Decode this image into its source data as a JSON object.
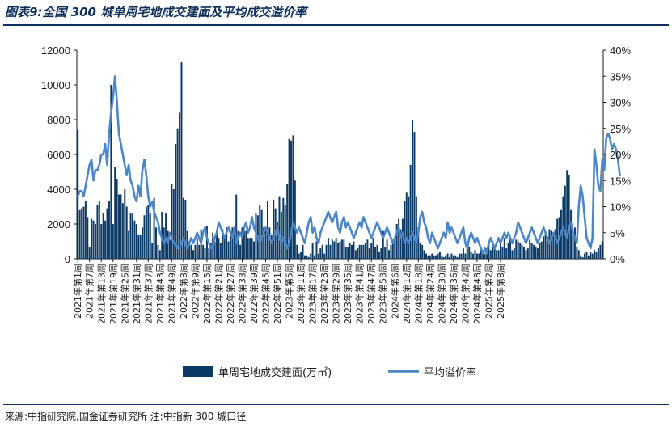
{
  "header": {
    "title": "图表9:全国 300 城单周宅地成交建面及平均成交溢价率"
  },
  "footer": {
    "source": "来源:中指研究院,国金证券研究所 注:中指新 300 城口径"
  },
  "colors": {
    "bar": "#0c3a66",
    "line": "#4a86c8",
    "title": "#0c2e5a"
  },
  "chart_data": {
    "type": "bar",
    "title": "",
    "xlabel": "",
    "ylabel": "",
    "ylim": [
      0,
      12000
    ],
    "y2lim": [
      0,
      40
    ],
    "y_ticks": [
      "0",
      "2000",
      "4000",
      "6000",
      "8000",
      "10000",
      "12000"
    ],
    "y2_ticks": [
      "0%",
      "5%",
      "10%",
      "15%",
      "20%",
      "25%",
      "30%",
      "35%",
      "40%"
    ],
    "x_tick_labels": [
      "2021年第1周",
      "2021年第7周",
      "2021年第13周",
      "2021年第19周",
      "2021年第25周",
      "2021年第31周",
      "2021年第37周",
      "2021年第43周",
      "2021年第49周",
      "2022年第3周",
      "2022年第9周",
      "2022年第15周",
      "2022年第21周",
      "2022年第27周",
      "2022年第33周",
      "2022年第39周",
      "2022年第45周",
      "2022年第51周",
      "2023年第5周",
      "2023年第11周",
      "2023年第17周",
      "2023年第23周",
      "2023年第29周",
      "2023年第35周",
      "2023年第41周",
      "2023年第47周",
      "2023年第53周",
      "2024年第6周",
      "2024年第12周",
      "2024年第18周",
      "2024年第24周",
      "2024年第30周",
      "2024年第36周",
      "2024年第42周",
      "2024年第48周",
      "2025年第2周",
      "2025年第8周"
    ],
    "legend_position": "bottom-center",
    "series": [
      {
        "name": "单周宅地成交建面(万㎡)",
        "type": "bar",
        "axis": "left",
        "values": [
          7400,
          2800,
          2900,
          3000,
          3300,
          2400,
          700,
          2300,
          2200,
          2000,
          3100,
          3300,
          2000,
          2600,
          2200,
          2900,
          3300,
          10000,
          2000,
          5300,
          4600,
          3700,
          3700,
          3200,
          4000,
          3000,
          1600,
          2600,
          2600,
          2200,
          2000,
          1400,
          1400,
          1800,
          2500,
          3000,
          3100,
          2600,
          900,
          3500,
          1800,
          800,
          500,
          2700,
          1800,
          2600,
          1600,
          1100,
          4300,
          4000,
          6600,
          7500,
          8400,
          11300,
          3500,
          3400,
          1600,
          1000,
          800,
          500,
          800,
          1200,
          800,
          1700,
          800,
          600,
          1900,
          600,
          900,
          1500,
          1000,
          1600,
          1200,
          900,
          1700,
          1300,
          1800,
          1000,
          1600,
          1800,
          1600,
          3700,
          1600,
          800,
          1800,
          1600,
          1600,
          1200,
          1200,
          1200,
          1000,
          2600,
          2500,
          3100,
          2800,
          1800,
          1600,
          3300,
          1800,
          1400,
          3400,
          2900,
          2100,
          3600,
          2700,
          3500,
          3100,
          4300,
          6900,
          6800,
          7100,
          4500,
          800,
          300,
          400,
          800,
          200,
          200,
          100,
          300,
          900,
          200,
          1000,
          300,
          600,
          800,
          300,
          800,
          1200,
          800,
          1100,
          1000,
          1200,
          900,
          1000,
          1100,
          1100,
          700,
          700,
          900,
          800,
          1000,
          500,
          600,
          800,
          800,
          800,
          900,
          1100,
          600,
          900,
          1200,
          700,
          800,
          400,
          600,
          1600,
          700,
          1100,
          500,
          800,
          1100,
          1100,
          2000,
          2300,
          1700,
          2300,
          3300,
          3800,
          3600,
          5400,
          8000,
          7300,
          3600,
          1800,
          900,
          800,
          500,
          300,
          200,
          200,
          300,
          200,
          200,
          300,
          400,
          200,
          100,
          200,
          300,
          100,
          300,
          200,
          200,
          100,
          300,
          300,
          600,
          300,
          600,
          700,
          400,
          300,
          500,
          300,
          300,
          500,
          300,
          300,
          600,
          900,
          500,
          700,
          600,
          500,
          500,
          900,
          700,
          1200,
          600,
          900,
          1200,
          500,
          600,
          1100,
          1000,
          900,
          800,
          700,
          500,
          600,
          1100,
          900,
          800,
          700,
          600,
          900,
          1000,
          1300,
          1500,
          1000,
          1700,
          1600,
          1500,
          1700,
          2300,
          2400,
          2800,
          3600,
          4200,
          5100,
          4800,
          2800,
          1600,
          1800,
          700,
          500,
          200,
          100,
          300,
          400,
          200,
          400,
          300,
          500,
          400,
          600,
          800,
          1000
        ]
      },
      {
        "name": "平均溢价率",
        "type": "line",
        "axis": "right",
        "values": [
          12,
          13,
          13,
          12,
          14,
          16,
          18,
          19,
          15,
          17,
          17,
          18,
          20,
          20,
          22,
          18,
          24,
          28,
          31,
          35,
          30,
          24,
          22,
          20,
          18,
          16,
          18,
          15,
          14,
          12,
          11,
          14,
          12,
          17,
          19,
          16,
          12,
          10,
          11,
          9,
          8,
          7,
          5,
          4,
          3,
          4,
          3,
          5,
          4,
          3,
          3,
          2,
          2,
          3,
          4,
          3,
          2,
          3,
          4,
          3,
          4,
          5,
          4,
          3,
          5,
          6,
          4,
          3,
          2,
          2,
          4,
          5,
          7,
          6,
          5,
          4,
          5,
          6,
          5,
          4,
          6,
          3,
          4,
          5,
          4,
          6,
          7,
          5,
          6,
          8,
          6,
          5,
          4,
          3,
          4,
          5,
          6,
          5,
          4,
          3,
          4,
          5,
          6,
          4,
          3,
          4,
          3,
          2,
          3,
          5,
          7,
          6,
          5,
          6,
          5,
          4,
          3,
          5,
          7,
          8,
          5,
          6,
          4,
          3,
          5,
          6,
          7,
          8,
          9,
          8,
          7,
          8,
          9,
          6,
          5,
          7,
          8,
          6,
          7,
          6,
          5,
          4,
          5,
          6,
          7,
          6,
          8,
          7,
          6,
          5,
          4,
          5,
          6,
          7,
          6,
          5,
          4,
          5,
          6,
          5,
          4,
          3,
          4,
          5,
          6,
          4,
          5,
          3,
          4,
          3,
          4,
          5,
          4,
          3,
          5,
          8,
          9,
          7,
          6,
          4,
          3,
          5,
          4,
          3,
          2,
          3,
          4,
          5,
          4,
          7,
          5,
          6,
          5,
          4,
          3,
          4,
          5,
          6,
          3,
          2,
          4,
          5,
          4,
          3,
          4,
          3,
          2,
          1,
          2,
          1,
          3,
          4,
          3,
          2,
          3,
          4,
          3,
          4,
          5,
          4,
          5,
          4,
          3,
          4,
          5,
          7,
          6,
          5,
          4,
          3,
          4,
          5,
          6,
          5,
          4,
          3,
          4,
          5,
          6,
          5,
          4,
          3,
          4,
          5,
          4,
          3,
          4,
          5,
          6,
          5,
          4,
          6,
          7,
          5,
          4,
          3,
          10,
          14,
          12,
          8,
          4,
          3,
          2,
          4,
          21,
          18,
          14,
          13,
          19,
          17,
          23,
          24,
          23,
          21,
          22,
          21,
          19,
          16
        ]
      }
    ]
  }
}
